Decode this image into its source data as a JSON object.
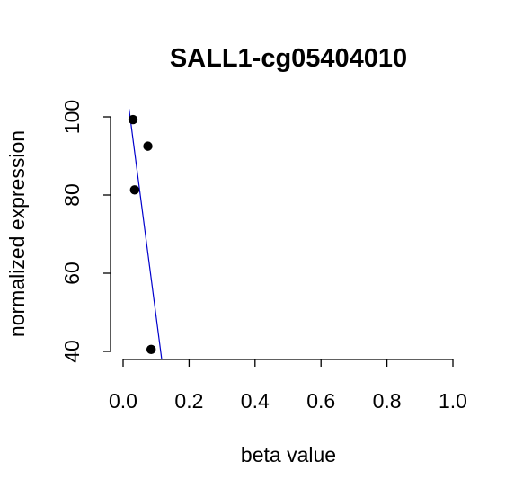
{
  "chart_data": {
    "type": "scatter",
    "title": "SALL1-cg05404010",
    "xlabel": "beta value",
    "ylabel": "normalized expression",
    "xlim": [
      0.0,
      1.0
    ],
    "ylim": [
      40,
      100
    ],
    "x_ticks": [
      "0.0",
      "0.2",
      "0.4",
      "0.6",
      "0.8",
      "1.0"
    ],
    "y_ticks": [
      "40",
      "60",
      "80",
      "100"
    ],
    "points": [
      {
        "x": 0.03,
        "y": 99.3
      },
      {
        "x": 0.075,
        "y": 92.5
      },
      {
        "x": 0.035,
        "y": 81.3
      },
      {
        "x": 0.085,
        "y": 40.5
      }
    ],
    "fit_line": {
      "x": [
        0.018,
        0.117
      ],
      "y": [
        102,
        38
      ]
    },
    "colors": {
      "points": "#000000",
      "fit_line": "#0000cc"
    }
  }
}
